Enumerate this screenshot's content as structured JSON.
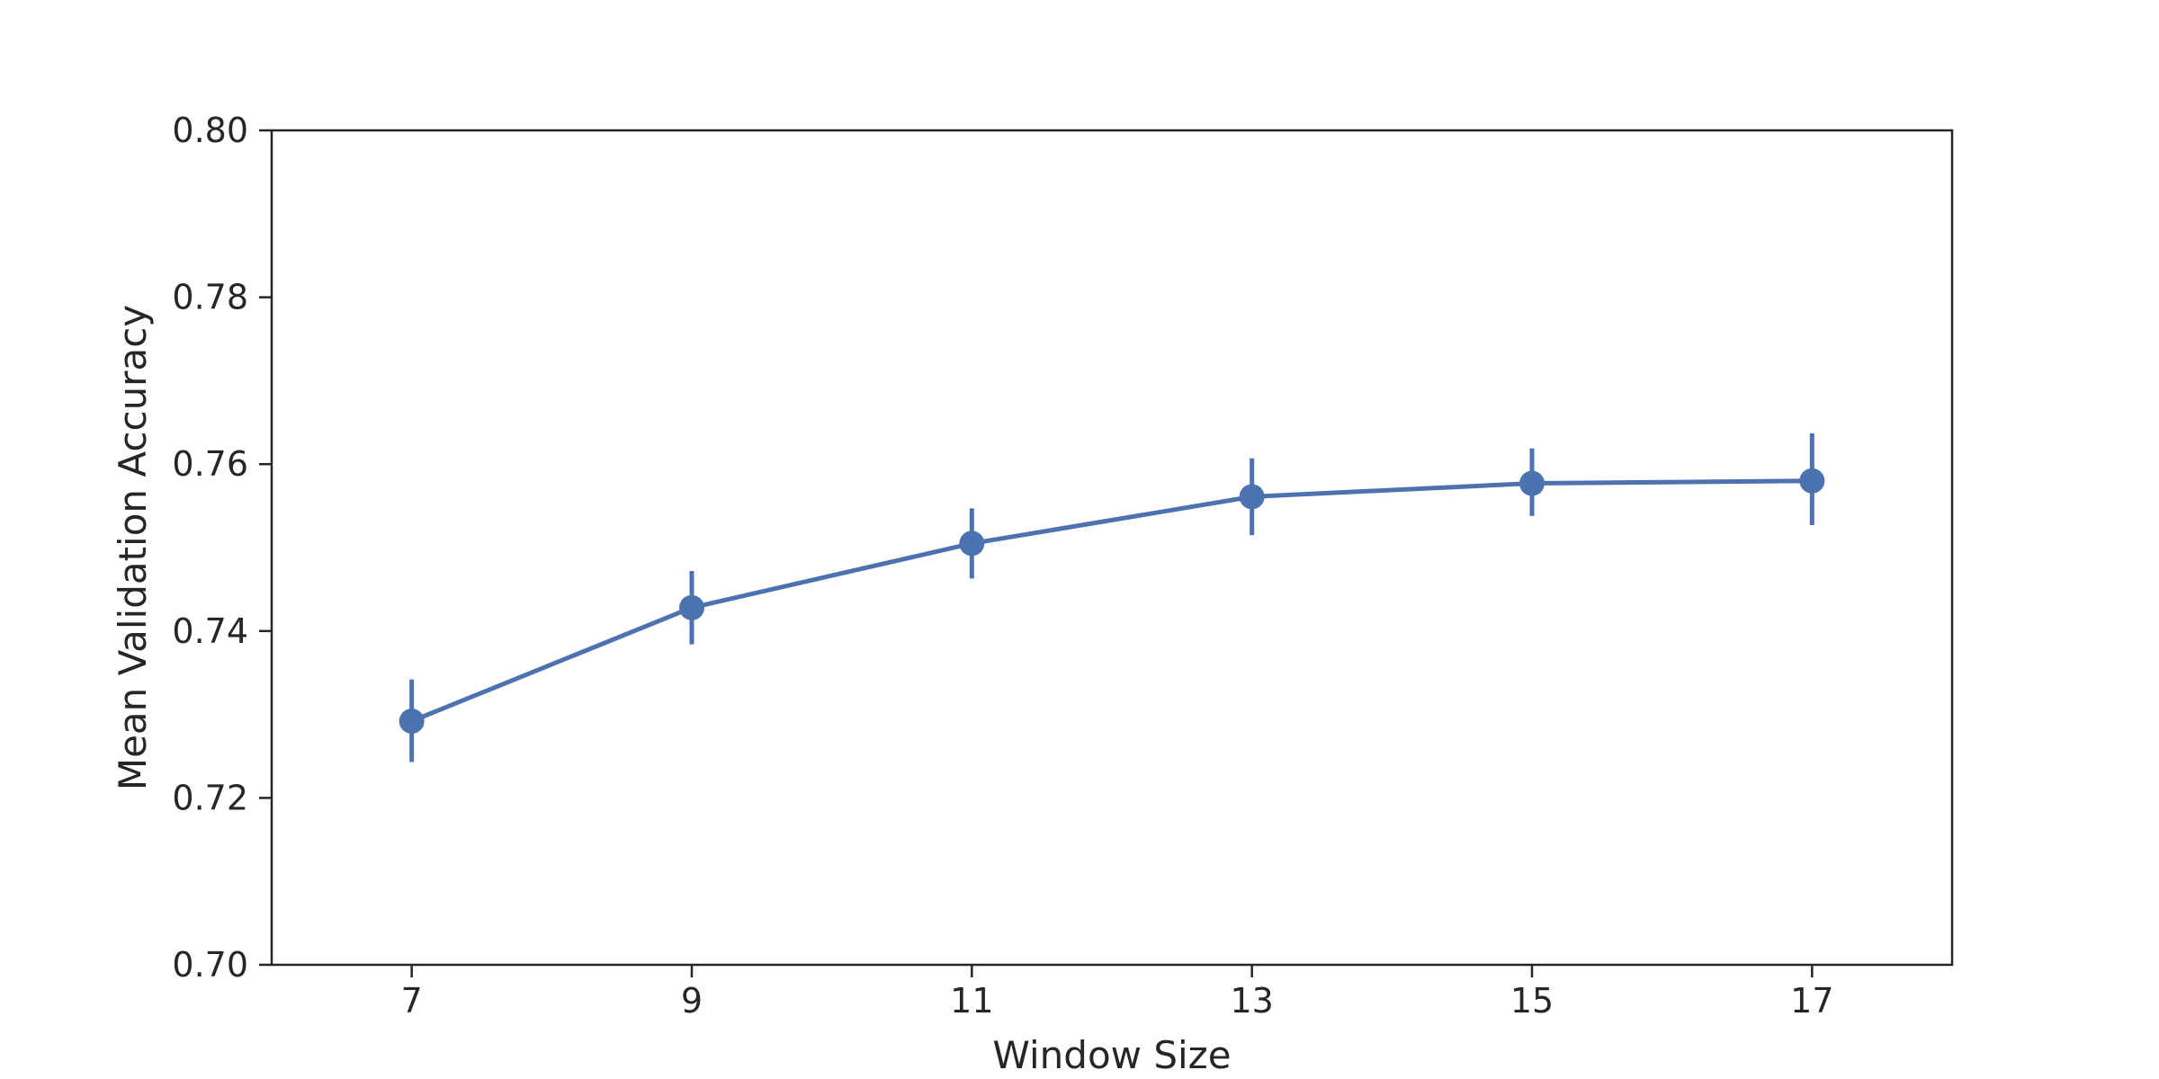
{
  "chart_data": {
    "type": "line",
    "title": "",
    "xlabel": "Window Size",
    "ylabel": "Mean Validation Accuracy",
    "x": [
      7,
      9,
      11,
      13,
      15,
      17
    ],
    "xticks": [
      "7",
      "9",
      "11",
      "13",
      "15",
      "17"
    ],
    "xlim": [
      6,
      18
    ],
    "ylim": [
      0.7,
      0.8
    ],
    "yticks": [
      "0.70",
      "0.72",
      "0.74",
      "0.76",
      "0.78",
      "0.80"
    ],
    "grid": false,
    "series": [
      {
        "values": [
          0.7292,
          0.7428,
          0.7505,
          0.7561,
          0.7577,
          0.758
        ],
        "err_low": [
          0.7243,
          0.7384,
          0.7463,
          0.7515,
          0.7538,
          0.7527
        ],
        "err_high": [
          0.7342,
          0.7472,
          0.7547,
          0.7607,
          0.7619,
          0.7637
        ],
        "color": "#4c72b0"
      }
    ]
  }
}
